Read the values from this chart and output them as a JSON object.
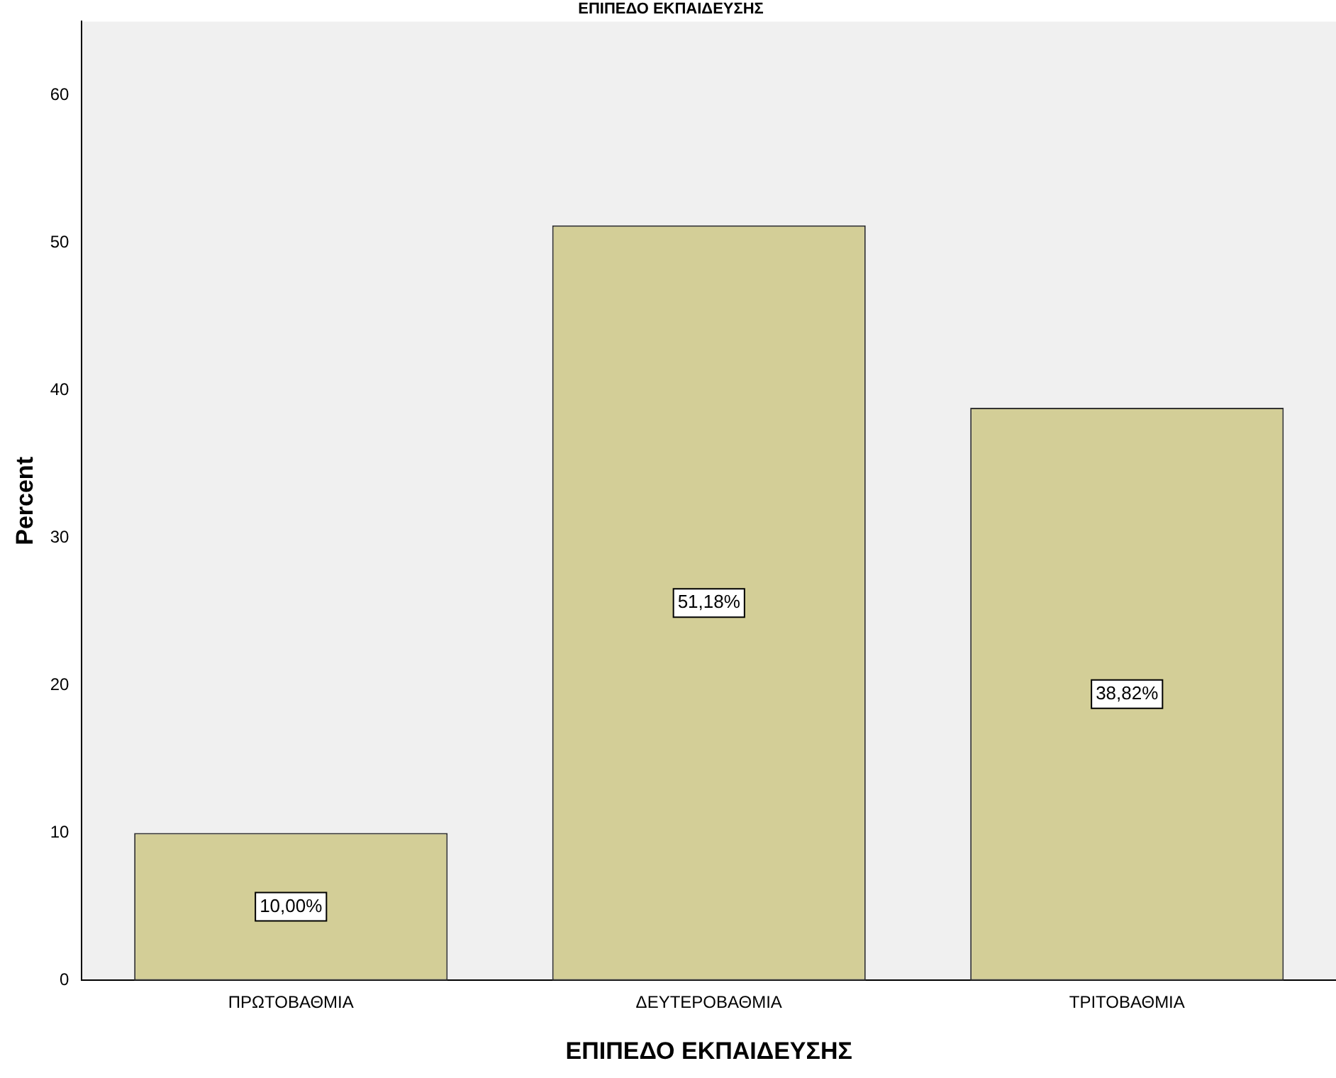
{
  "chart_data": {
    "type": "bar",
    "title": "ΕΠΙΠΕΔΟ ΕΚΠΑΙΔΕΥΣΗΣ",
    "xlabel": "ΕΠΙΠΕΔΟ ΕΚΠΑΙΔΕΥΣΗΣ",
    "ylabel": "Percent",
    "categories": [
      "ΠΡΩΤΟΒΑΘΜΙΑ",
      "ΔΕΥΤΕΡΟΒΑΘΜΙΑ",
      "ΤΡΙΤΟΒΑΘΜΙΑ"
    ],
    "values": [
      10.0,
      51.18,
      38.82
    ],
    "value_labels": [
      "10,00%",
      "51,18%",
      "38,82%"
    ],
    "color": "#d3ce97",
    "ylim": [
      0,
      65
    ],
    "yticks": [
      0,
      10,
      20,
      30,
      40,
      50,
      60
    ],
    "grid": false,
    "legend": false
  }
}
